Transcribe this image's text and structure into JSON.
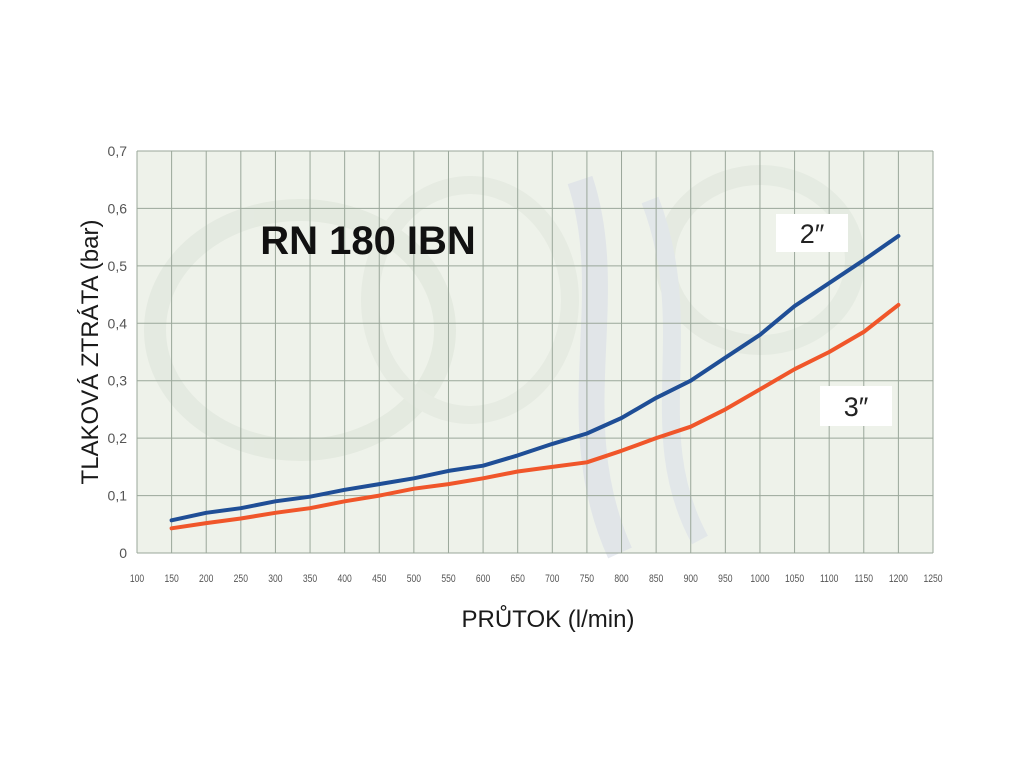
{
  "chart_data": {
    "type": "line",
    "title": "RN 180 IBN",
    "xlabel": "PRŮTOK (l/min)",
    "ylabel": "TLAKOVÁ ZTRÁTA (bar)",
    "xlim": [
      100,
      1250
    ],
    "ylim": [
      0,
      0.7
    ],
    "x_ticks": [
      100,
      150,
      200,
      250,
      300,
      350,
      400,
      450,
      500,
      550,
      600,
      650,
      700,
      750,
      800,
      850,
      900,
      950,
      1000,
      1050,
      1100,
      1150,
      1200,
      1250
    ],
    "y_ticks": [
      0,
      0.1,
      0.2,
      0.3,
      0.4,
      0.5,
      0.6,
      0.7
    ],
    "y_tick_labels": [
      "0",
      "0,1",
      "0,2",
      "0,3",
      "0,4",
      "0,5",
      "0,6",
      "0,7"
    ],
    "grid": true,
    "series": [
      {
        "name": "2″",
        "color": "#1f4e96",
        "x": [
          150,
          200,
          250,
          300,
          350,
          400,
          450,
          500,
          550,
          600,
          650,
          700,
          750,
          800,
          850,
          900,
          950,
          1000,
          1050,
          1100,
          1150,
          1200
        ],
        "y": [
          0.057,
          0.07,
          0.078,
          0.09,
          0.098,
          0.11,
          0.12,
          0.13,
          0.143,
          0.152,
          0.17,
          0.19,
          0.208,
          0.235,
          0.27,
          0.3,
          0.34,
          0.38,
          0.43,
          0.47,
          0.51,
          0.552
        ]
      },
      {
        "name": "3″",
        "color": "#f0562a",
        "x": [
          150,
          200,
          250,
          300,
          350,
          400,
          450,
          500,
          550,
          600,
          650,
          700,
          750,
          800,
          850,
          900,
          950,
          1000,
          1050,
          1100,
          1150,
          1200
        ],
        "y": [
          0.043,
          0.052,
          0.06,
          0.07,
          0.078,
          0.09,
          0.1,
          0.112,
          0.12,
          0.13,
          0.142,
          0.15,
          0.158,
          0.178,
          0.2,
          0.22,
          0.25,
          0.285,
          0.32,
          0.35,
          0.385,
          0.432
        ]
      }
    ]
  }
}
